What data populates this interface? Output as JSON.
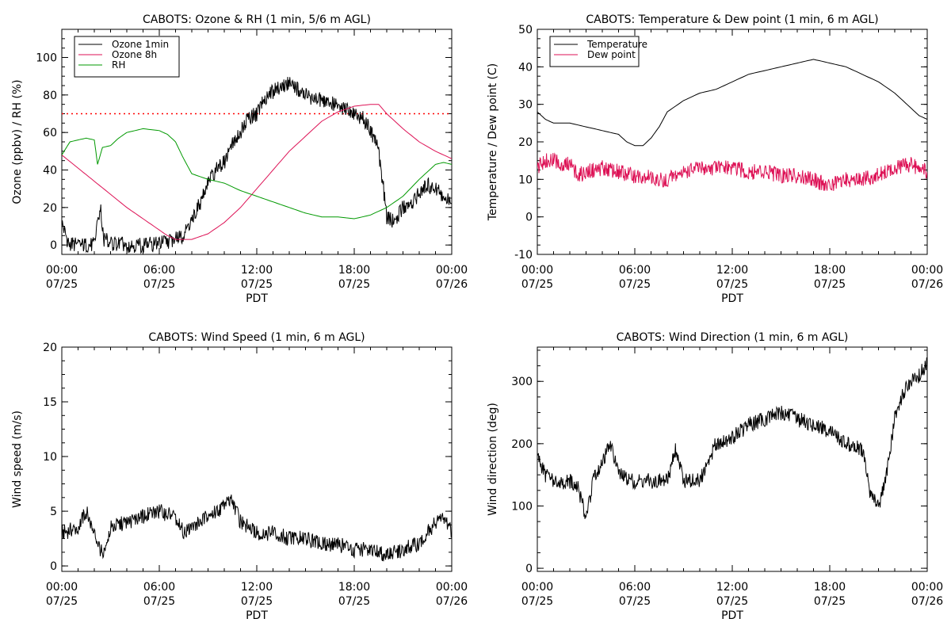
{
  "chart_data": [
    {
      "type": "line",
      "title": "CABOTS: Ozone & RH (1 min, 5/6 m AGL)",
      "xlabel": "PDT",
      "ylabel": "Ozone (ppbv) / RH (%)",
      "x_ticks": [
        [
          "00:00",
          "07/25"
        ],
        [
          "06:00",
          "07/25"
        ],
        [
          "12:00",
          "07/25"
        ],
        [
          "18:00",
          "07/25"
        ],
        [
          "00:00",
          "07/26"
        ]
      ],
      "xlim": [
        0,
        24
      ],
      "ylim": [
        -5,
        115
      ],
      "y_ticks": [
        0,
        20,
        40,
        60,
        80,
        100
      ],
      "reference_line": {
        "y": 70,
        "style": "dotted",
        "color": "#ff0000"
      },
      "legend": {
        "position": "top-left",
        "entries": [
          "Ozone 1min",
          "Ozone 8h",
          "RH"
        ]
      },
      "series": [
        {
          "name": "Ozone 1min",
          "color": "#000000",
          "noisy": true,
          "x": [
            0,
            0.4,
            1,
            2,
            2.2,
            2.4,
            2.6,
            3,
            4,
            5,
            6,
            7,
            7.5,
            8,
            8.5,
            9,
            9.5,
            10,
            10.5,
            11,
            11.5,
            12,
            12.5,
            13,
            13.5,
            14,
            14.5,
            15,
            15.5,
            16,
            16.5,
            17,
            17.5,
            18,
            18.5,
            19,
            19.5,
            19.8,
            20,
            20.5,
            21,
            21.5,
            22,
            22.5,
            23,
            23.5,
            24
          ],
          "y": [
            12,
            1,
            0,
            0,
            15,
            18,
            3,
            1,
            0,
            0,
            1,
            3,
            5,
            14,
            22,
            33,
            40,
            44,
            55,
            60,
            68,
            70,
            78,
            82,
            84,
            86,
            83,
            80,
            78,
            77,
            76,
            74,
            72,
            70,
            68,
            62,
            50,
            30,
            15,
            12,
            20,
            22,
            28,
            32,
            30,
            25,
            22
          ]
        },
        {
          "name": "Ozone 8h",
          "color": "#dd1155",
          "x": [
            0,
            1,
            2,
            3,
            4,
            5,
            6,
            6.5,
            7,
            8,
            9,
            10,
            11,
            12,
            13,
            14,
            15,
            16,
            17,
            18,
            19,
            19.5,
            20,
            21,
            22,
            23,
            24
          ],
          "y": [
            48,
            41,
            34,
            27,
            20,
            14,
            8,
            5,
            3,
            3,
            6,
            12,
            20,
            30,
            40,
            50,
            58,
            66,
            71,
            74,
            75,
            75,
            70,
            62,
            55,
            50,
            46
          ]
        },
        {
          "name": "RH",
          "color": "#009900",
          "x": [
            0,
            0.5,
            1,
            1.5,
            2,
            2.2,
            2.5,
            3,
            3.5,
            4,
            5,
            6,
            6.5,
            7,
            7.5,
            8,
            9,
            10,
            11,
            12,
            13,
            14,
            15,
            16,
            17,
            18,
            19,
            20,
            21,
            22,
            23,
            23.5,
            24
          ],
          "y": [
            48,
            55,
            56,
            57,
            56,
            43,
            52,
            53,
            57,
            60,
            62,
            61,
            59,
            55,
            46,
            38,
            35,
            33,
            29,
            26,
            23,
            20,
            17,
            15,
            15,
            14,
            16,
            20,
            26,
            35,
            43,
            44,
            43
          ]
        }
      ]
    },
    {
      "type": "line",
      "title": "CABOTS: Temperature & Dew point (1 min, 6 m AGL)",
      "xlabel": "PDT",
      "ylabel": "Temperature / Dew point (C)",
      "x_ticks": [
        [
          "00:00",
          "07/25"
        ],
        [
          "06:00",
          "07/25"
        ],
        [
          "12:00",
          "07/25"
        ],
        [
          "18:00",
          "07/25"
        ],
        [
          "00:00",
          "07/26"
        ]
      ],
      "xlim": [
        0,
        24
      ],
      "ylim": [
        -10,
        50
      ],
      "y_ticks": [
        -10,
        0,
        10,
        20,
        30,
        40,
        50
      ],
      "legend": {
        "position": "top-left",
        "entries": [
          "Temperature",
          "Dew point"
        ]
      },
      "series": [
        {
          "name": "Temperature",
          "color": "#000000",
          "x": [
            0,
            0.5,
            1,
            2,
            3,
            4,
            5,
            5.5,
            6,
            6.5,
            7,
            7.5,
            8,
            9,
            10,
            11,
            12,
            13,
            14,
            15,
            16,
            17,
            18,
            19,
            20,
            21,
            22,
            23,
            23.5,
            24
          ],
          "y": [
            28,
            26,
            25,
            25,
            24,
            23,
            22,
            20,
            19,
            19,
            21,
            24,
            28,
            31,
            33,
            34,
            36,
            38,
            39,
            40,
            41,
            42,
            41,
            40,
            38,
            36,
            33,
            29,
            27,
            26
          ]
        },
        {
          "name": "Dew point",
          "color": "#dd1155",
          "noisy": true,
          "x": [
            0,
            0.5,
            1,
            1.5,
            2,
            2.5,
            3,
            4,
            5,
            6,
            7,
            7.5,
            8,
            9,
            10,
            11,
            12,
            13,
            14,
            15,
            16,
            17,
            17.5,
            18,
            19,
            20,
            21,
            22,
            23,
            23.5,
            24
          ],
          "y": [
            13,
            15,
            15,
            14,
            14,
            11,
            12,
            13,
            12,
            11,
            11,
            10,
            10,
            12,
            13,
            13,
            13,
            12,
            12,
            11,
            11,
            10,
            9,
            8,
            10,
            10,
            11,
            13,
            14,
            13,
            12
          ]
        }
      ]
    },
    {
      "type": "line",
      "title": "CABOTS: Wind Speed (1 min, 6 m AGL)",
      "xlabel": "PDT",
      "ylabel": "Wind speed (m/s)",
      "x_ticks": [
        [
          "00:00",
          "07/25"
        ],
        [
          "06:00",
          "07/25"
        ],
        [
          "12:00",
          "07/25"
        ],
        [
          "18:00",
          "07/25"
        ],
        [
          "00:00",
          "07/26"
        ]
      ],
      "xlim": [
        0,
        24
      ],
      "ylim": [
        -0.5,
        20
      ],
      "y_ticks": [
        0,
        5,
        10,
        15,
        20
      ],
      "series": [
        {
          "name": "Wind speed",
          "color": "#000000",
          "noisy": true,
          "x": [
            0,
            1,
            1.5,
            2,
            2.5,
            3,
            4,
            5,
            6,
            7,
            7.5,
            8,
            9,
            10,
            10.5,
            11,
            12,
            13,
            14,
            15,
            16,
            17,
            18,
            19,
            20,
            21,
            22,
            22.5,
            23,
            23.5,
            24
          ],
          "y": [
            3,
            3.5,
            5,
            3,
            1,
            3.5,
            4,
            4.5,
            5,
            4.5,
            3,
            3.5,
            4.5,
            5.5,
            6,
            4,
            3,
            3,
            2.5,
            2.5,
            2,
            2,
            1.5,
            1.5,
            1,
            1.5,
            2,
            3,
            4,
            4.5,
            3
          ]
        }
      ]
    },
    {
      "type": "line",
      "title": "CABOTS: Wind Direction (1 min, 6 m AGL)",
      "xlabel": "PDT",
      "ylabel": "Wind direction (deg)",
      "x_ticks": [
        [
          "00:00",
          "07/25"
        ],
        [
          "06:00",
          "07/25"
        ],
        [
          "12:00",
          "07/25"
        ],
        [
          "18:00",
          "07/25"
        ],
        [
          "00:00",
          "07/26"
        ]
      ],
      "xlim": [
        0,
        24
      ],
      "ylim": [
        -5,
        355
      ],
      "y_ticks": [
        0,
        100,
        200,
        300
      ],
      "series": [
        {
          "name": "Wind direction",
          "color": "#000000",
          "noisy": true,
          "x": [
            0,
            0.5,
            1,
            1.5,
            2,
            2.5,
            3,
            3.5,
            4,
            4.5,
            5,
            6,
            7,
            8,
            8.5,
            9,
            10,
            11,
            12,
            13,
            14,
            15,
            16,
            17,
            18,
            19,
            20,
            20.5,
            21,
            21.5,
            22,
            22.5,
            23,
            23.5,
            24
          ],
          "y": [
            180,
            150,
            140,
            135,
            140,
            130,
            80,
            150,
            170,
            200,
            150,
            140,
            140,
            140,
            190,
            140,
            140,
            200,
            210,
            230,
            240,
            250,
            240,
            230,
            220,
            200,
            190,
            120,
            100,
            150,
            240,
            280,
            300,
            310,
            330
          ]
        }
      ]
    }
  ]
}
